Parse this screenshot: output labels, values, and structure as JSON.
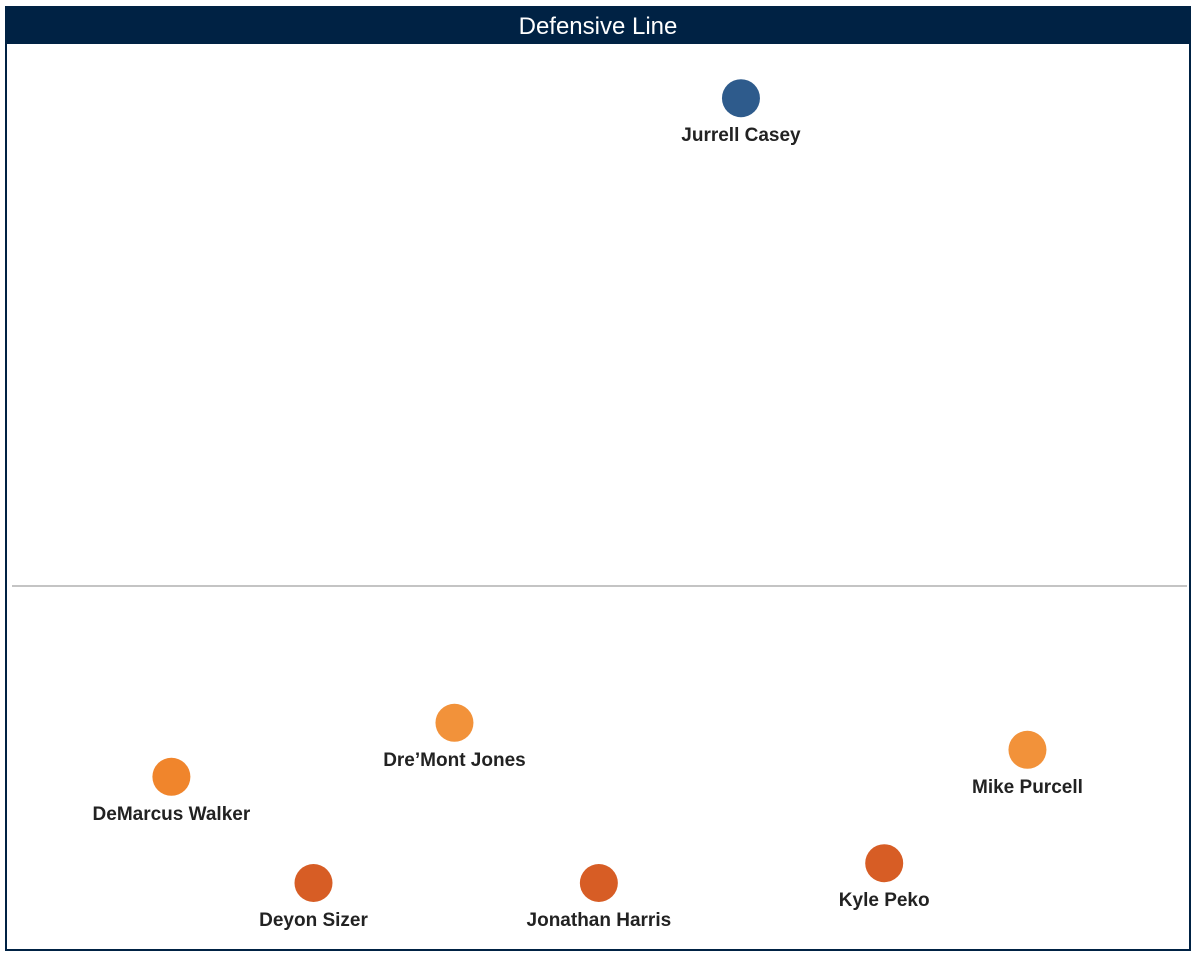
{
  "chart_data": {
    "type": "scatter",
    "title": "Defensive Line",
    "xlabel": "",
    "ylabel": "",
    "xlim": [
      0,
      100
    ],
    "ylim": [
      0,
      100
    ],
    "grid": false,
    "reference_line_y": 40,
    "points": [
      {
        "label": "Jurrell Casey",
        "x": 62.3,
        "y": 94.2,
        "color": "#2e5b8c"
      },
      {
        "label": "Dre’Mont Jones",
        "x": 37.3,
        "y": 24.8,
        "color": "#f2923a"
      },
      {
        "label": "DeMarcus Walker",
        "x": 12.6,
        "y": 18.8,
        "color": "#f0852c"
      },
      {
        "label": "Mike Purcell",
        "x": 87.3,
        "y": 21.8,
        "color": "#f2923a"
      },
      {
        "label": "Deyon Sizer",
        "x": 25.0,
        "y": 7.0,
        "color": "#d75d25"
      },
      {
        "label": "Jonathan Harris",
        "x": 49.9,
        "y": 7.0,
        "color": "#d75d25"
      },
      {
        "label": "Kyle Peko",
        "x": 74.8,
        "y": 9.2,
        "color": "#d75d25"
      }
    ]
  }
}
